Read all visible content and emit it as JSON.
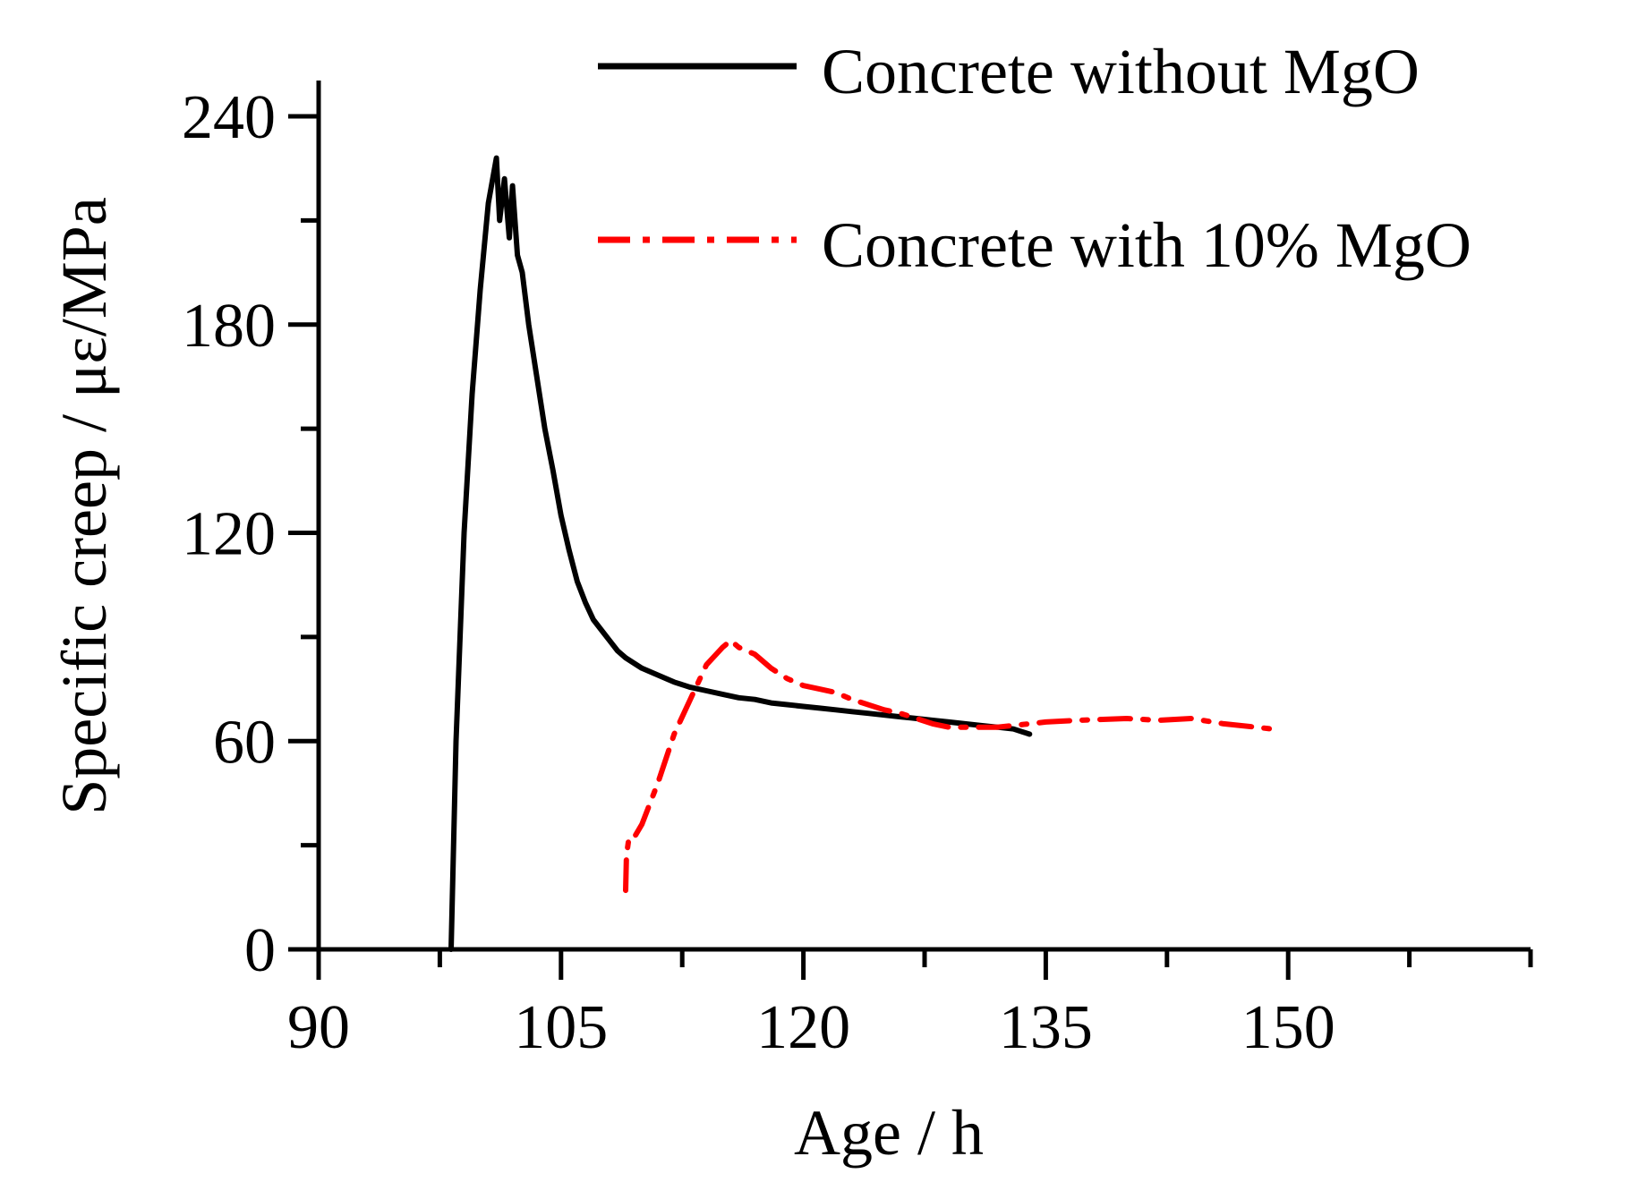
{
  "chart_data": {
    "type": "line",
    "title": "",
    "xlabel": "Age / h",
    "ylabel": "Specific creep / με/MPa",
    "xlim": [
      90,
      165
    ],
    "ylim": [
      0,
      240
    ],
    "xticks": [
      90,
      105,
      120,
      135,
      150
    ],
    "yticks": [
      0,
      60,
      120,
      180,
      240
    ],
    "x_tick_labels": [
      "90",
      "105",
      "120",
      "135",
      "150"
    ],
    "y_tick_labels": [
      "0",
      "60",
      "120",
      "180",
      "240"
    ],
    "legend_position": "top-right",
    "series": [
      {
        "name": "Concrete without MgO",
        "color": "#000000",
        "style": "solid",
        "x": [
          98.2,
          98.5,
          99,
          99.5,
          100,
          100.5,
          101,
          101.2,
          101.5,
          101.8,
          102,
          102.3,
          102.6,
          103,
          103.5,
          104,
          104.5,
          105,
          105.5,
          106,
          106.5,
          107,
          107.5,
          108,
          108.5,
          109,
          110,
          111,
          112,
          113,
          114,
          115,
          116,
          117,
          118,
          119,
          120,
          121,
          122,
          123,
          124,
          125,
          126,
          127,
          128,
          129,
          130,
          131,
          132,
          133,
          134
        ],
        "y": [
          0,
          60,
          120,
          160,
          190,
          215,
          228,
          210,
          222,
          205,
          220,
          200,
          195,
          180,
          165,
          150,
          138,
          125,
          115,
          106,
          100,
          95,
          92,
          89,
          86,
          84,
          81,
          79,
          77,
          75.5,
          74.5,
          73.5,
          72.5,
          72,
          71,
          70.5,
          70,
          69.5,
          69,
          68.5,
          68,
          67.5,
          67,
          66.5,
          66,
          65.5,
          65,
          64.5,
          64,
          63.5,
          62
        ]
      },
      {
        "name": "Concrete with 10% MgO",
        "color": "#ff0000",
        "style": "dash-dot",
        "x": [
          109,
          109.05,
          109.2,
          109.5,
          110,
          111,
          112,
          113,
          114,
          115,
          115.5,
          116,
          117,
          118,
          119,
          120,
          121,
          122,
          123,
          124,
          125,
          126,
          127,
          128,
          129,
          130,
          131,
          132,
          133,
          134,
          135,
          137,
          140,
          142,
          144,
          146,
          148,
          149
        ],
        "y": [
          17,
          27,
          32,
          32,
          36,
          48,
          62,
          72,
          82,
          87,
          89,
          87,
          85,
          81,
          78,
          76,
          75,
          74,
          72,
          70.5,
          69,
          68,
          66.5,
          65,
          64,
          64,
          64,
          64,
          64.5,
          65,
          65.5,
          66,
          66.5,
          66,
          66.5,
          65,
          64,
          63.5
        ]
      }
    ]
  }
}
